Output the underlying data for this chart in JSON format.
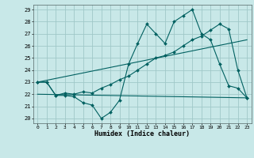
{
  "background_color": "#c8e8e8",
  "grid_color": "#a0c8c8",
  "line_color": "#006060",
  "xlim": [
    -0.5,
    23.5
  ],
  "ylim": [
    19.6,
    29.4
  ],
  "xlabel": "Humidex (Indice chaleur)",
  "ytick_vals": [
    20,
    21,
    22,
    23,
    24,
    25,
    26,
    27,
    28,
    29
  ],
  "xtick_vals": [
    0,
    1,
    2,
    3,
    4,
    5,
    6,
    7,
    8,
    9,
    10,
    11,
    12,
    13,
    14,
    15,
    16,
    17,
    18,
    19,
    20,
    21,
    22,
    23
  ],
  "series_jagged_x": [
    0,
    1,
    2,
    3,
    4,
    5,
    6,
    7,
    8,
    9,
    10,
    11,
    12,
    13,
    14,
    15,
    16,
    17,
    18,
    19,
    20,
    21,
    22,
    23
  ],
  "series_jagged_y": [
    23.0,
    23.0,
    21.9,
    21.9,
    21.8,
    21.3,
    21.1,
    20.0,
    20.5,
    21.5,
    24.5,
    26.2,
    27.8,
    27.0,
    26.2,
    28.0,
    28.5,
    29.0,
    27.0,
    26.5,
    24.5,
    22.7,
    22.5,
    21.7
  ],
  "series_smooth_x": [
    0,
    1,
    2,
    3,
    4,
    5,
    6,
    7,
    8,
    9,
    10,
    11,
    12,
    13,
    14,
    15,
    16,
    17,
    18,
    19,
    20,
    21,
    22,
    23
  ],
  "series_smooth_y": [
    23.0,
    23.0,
    21.9,
    22.1,
    22.0,
    22.2,
    22.1,
    22.5,
    22.8,
    23.2,
    23.5,
    24.0,
    24.5,
    25.0,
    25.2,
    25.5,
    26.0,
    26.5,
    26.8,
    27.3,
    27.8,
    27.4,
    24.0,
    21.7
  ],
  "trend1_x": [
    0,
    23
  ],
  "trend1_y": [
    23.0,
    26.5
  ],
  "trend2_x": [
    0,
    23
  ],
  "trend2_y": [
    22.0,
    21.7
  ]
}
